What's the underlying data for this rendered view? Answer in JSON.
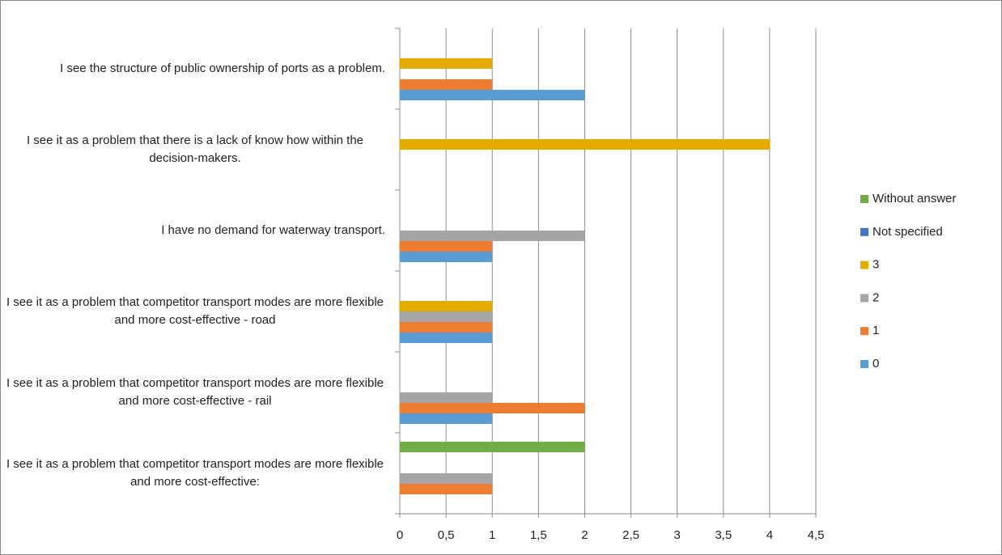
{
  "chart_data": {
    "type": "bar",
    "orientation": "horizontal",
    "categories": [
      "I see the structure of public ownership of ports as a problem.",
      "I see it as a problem that there is a lack of know how within the decision-makers.",
      "I have no demand for waterway transport.",
      "I see it as a problem that competitor transport modes are more flexible and more cost-effective - road",
      "I see it as a problem that competitor transport modes are more flexible and more cost-effective - rail",
      "I see it as a problem that competitor transport modes are more flexible and more cost-effective:"
    ],
    "series": [
      {
        "name": "0",
        "color": "#5b9bd5",
        "values": [
          2,
          0,
          1,
          1,
          1,
          0
        ]
      },
      {
        "name": "1",
        "color": "#ed7d31",
        "values": [
          1,
          0,
          1,
          1,
          2,
          1
        ]
      },
      {
        "name": "2",
        "color": "#a5a5a5",
        "values": [
          0,
          0,
          2,
          1,
          1,
          1
        ]
      },
      {
        "name": "3",
        "color": "#e5ac00",
        "values": [
          1,
          4,
          0,
          1,
          0,
          0
        ]
      },
      {
        "name": "Not specified",
        "color": "#4472c4",
        "values": [
          0,
          0,
          0,
          0,
          0,
          0
        ]
      },
      {
        "name": "Without answer",
        "color": "#70ad47",
        "values": [
          0,
          0,
          0,
          0,
          0,
          2
        ]
      }
    ],
    "xlim": [
      0,
      4.5
    ],
    "xticks": [
      0,
      {
        "value": 0.5,
        "label": "0,5"
      },
      1,
      {
        "value": 1.5,
        "label": "1,5"
      },
      2,
      {
        "value": 2.5,
        "label": "2,5"
      },
      3,
      {
        "value": 3.5,
        "label": "3,5"
      },
      4,
      {
        "value": 4.5,
        "label": "4,5"
      }
    ],
    "grid": true
  }
}
